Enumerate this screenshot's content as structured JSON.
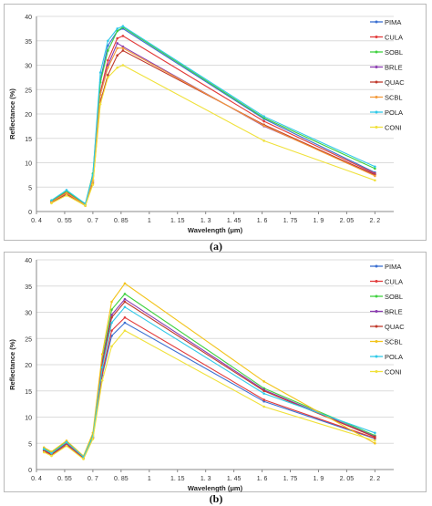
{
  "captions": [
    "(a)",
    "(b)"
  ],
  "chart_data": [
    {
      "type": "line",
      "title": "",
      "xlabel": "Wavelength (μm)",
      "ylabel": "Reflectance (%)",
      "xlim": [
        0.4,
        2.3
      ],
      "ylim": [
        0,
        40
      ],
      "xticks": [
        0.4,
        0.55,
        0.7,
        0.85,
        1,
        1.15,
        1.3,
        1.45,
        1.6,
        1.75,
        1.9,
        2.05,
        2.2
      ],
      "xtick_labels": [
        "0. 4",
        "0. 55",
        "0. 7",
        "0. 85",
        "1",
        "1. 15",
        "1. 3",
        "1. 45",
        "1. 6",
        "1. 75",
        "1. 9",
        "2. 05",
        "2. 2"
      ],
      "yticks": [
        0,
        5,
        10,
        15,
        20,
        25,
        30,
        35,
        40
      ],
      "grid": true,
      "legend": "right",
      "x": [
        0.48,
        0.56,
        0.66,
        0.7,
        0.74,
        0.78,
        0.83,
        0.86,
        1.61,
        2.2
      ],
      "series": [
        {
          "name": "PIMA",
          "color": "#3a6fd1",
          "values": [
            2.1,
            3.9,
            1.6,
            6.5,
            27.0,
            34.0,
            37.0,
            37.5,
            19.0,
            8.0
          ]
        },
        {
          "name": "CULA",
          "color": "#e23a3a",
          "values": [
            2.0,
            4.0,
            1.4,
            6.2,
            24.5,
            31.0,
            35.5,
            36.0,
            18.5,
            7.8
          ]
        },
        {
          "name": "SOBL",
          "color": "#3fd13f",
          "values": [
            2.2,
            4.2,
            1.5,
            7.8,
            26.5,
            33.0,
            37.0,
            37.8,
            19.2,
            8.8
          ]
        },
        {
          "name": "BRLE",
          "color": "#8a3ab0",
          "values": [
            1.9,
            3.7,
            1.3,
            6.0,
            24.0,
            30.0,
            34.5,
            33.8,
            17.5,
            7.6
          ]
        },
        {
          "name": "QUAC",
          "color": "#c0392b",
          "values": [
            1.8,
            3.5,
            1.2,
            5.8,
            22.5,
            28.0,
            32.0,
            33.0,
            17.8,
            7.5
          ]
        },
        {
          "name": "SCBL",
          "color": "#f39a3a",
          "values": [
            2.0,
            3.8,
            1.3,
            6.5,
            24.0,
            29.5,
            33.5,
            33.5,
            17.6,
            7.3
          ]
        },
        {
          "name": "POLA",
          "color": "#2fc9e8",
          "values": [
            2.3,
            4.4,
            1.6,
            7.5,
            28.5,
            35.0,
            37.5,
            38.0,
            19.5,
            9.2
          ]
        },
        {
          "name": "CONI",
          "color": "#f0e13a",
          "values": [
            1.7,
            3.3,
            1.2,
            5.5,
            22.0,
            27.5,
            29.5,
            30.0,
            14.5,
            6.4
          ]
        }
      ]
    },
    {
      "type": "line",
      "title": "",
      "xlabel": "Wavelength (μm)",
      "ylabel": "Reflectance (%)",
      "xlim": [
        0.4,
        2.3
      ],
      "ylim": [
        0,
        40
      ],
      "xticks": [
        0.4,
        0.55,
        0.7,
        0.85,
        1,
        1.15,
        1.3,
        1.45,
        1.6,
        1.75,
        1.9,
        2.05,
        2.2
      ],
      "xtick_labels": [
        "0. 4",
        "0. 55",
        "0. 7",
        "0. 85",
        "1",
        "1. 15",
        "1. 3",
        "1. 45",
        "1. 6",
        "1. 75",
        "1. 9",
        "2. 05",
        "2. 2"
      ],
      "yticks": [
        0,
        5,
        10,
        15,
        20,
        25,
        30,
        35,
        40
      ],
      "grid": true,
      "legend": "right",
      "x": [
        0.44,
        0.48,
        0.56,
        0.65,
        0.7,
        0.75,
        0.8,
        0.87,
        1.61,
        2.2
      ],
      "series": [
        {
          "name": "PIMA",
          "color": "#3a6fd1",
          "values": [
            3.6,
            2.8,
            4.8,
            2.2,
            6.0,
            18.0,
            25.5,
            28.0,
            13.0,
            5.9
          ]
        },
        {
          "name": "CULA",
          "color": "#e23a3a",
          "values": [
            3.5,
            2.7,
            4.7,
            2.1,
            6.0,
            18.5,
            26.5,
            29.0,
            13.3,
            6.0
          ]
        },
        {
          "name": "SOBL",
          "color": "#3fd13f",
          "values": [
            4.0,
            3.2,
            5.4,
            2.5,
            6.5,
            21.0,
            30.5,
            33.5,
            15.5,
            6.5
          ]
        },
        {
          "name": "BRLE",
          "color": "#8a3ab0",
          "values": [
            3.8,
            3.0,
            5.0,
            2.4,
            6.2,
            20.5,
            29.5,
            32.5,
            15.2,
            6.3
          ]
        },
        {
          "name": "QUAC",
          "color": "#c0392b",
          "values": [
            3.7,
            2.9,
            5.1,
            2.3,
            6.1,
            20.0,
            29.0,
            32.0,
            15.0,
            6.2
          ]
        },
        {
          "name": "SCBL",
          "color": "#f2c31a",
          "values": [
            4.2,
            3.4,
            5.5,
            2.6,
            7.0,
            22.0,
            32.0,
            35.5,
            16.8,
            5.0
          ]
        },
        {
          "name": "POLA",
          "color": "#2fc9e8",
          "values": [
            3.9,
            3.1,
            5.2,
            2.4,
            6.3,
            19.5,
            28.0,
            31.0,
            14.5,
            7.0
          ]
        },
        {
          "name": "CONI",
          "color": "#f0e13a",
          "values": [
            3.3,
            2.6,
            4.5,
            2.0,
            5.8,
            17.0,
            23.5,
            26.5,
            12.0,
            5.5
          ]
        }
      ]
    }
  ]
}
